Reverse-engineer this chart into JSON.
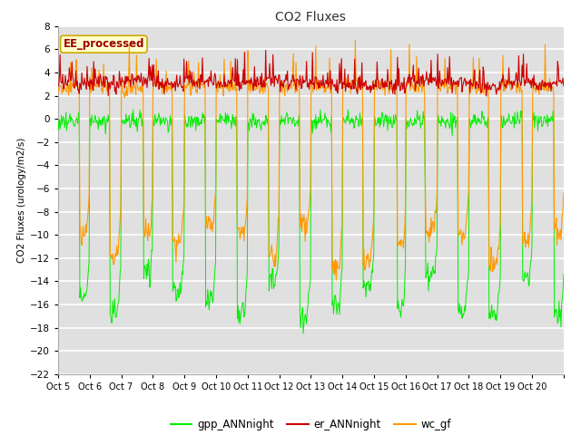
{
  "title": "CO2 Fluxes",
  "ylabel": "CO2 Fluxes (urology/m2/s)",
  "ylim": [
    -22,
    8
  ],
  "yticks": [
    -22,
    -20,
    -18,
    -16,
    -14,
    -12,
    -10,
    -8,
    -6,
    -4,
    -2,
    0,
    2,
    4,
    6,
    8
  ],
  "xlabels": [
    "Oct 5",
    "Oct 6",
    "Oct 7",
    "Oct 8",
    "Oct 9",
    "Oct 10",
    "Oct 11",
    "Oct 12",
    "Oct 13",
    "Oct 14",
    "Oct 15",
    "Oct 16",
    "Oct 17",
    "Oct 18",
    "Oct 19",
    "Oct 20"
  ],
  "n_days": 16,
  "points_per_day": 48,
  "color_gpp": "#00ee00",
  "color_er": "#cc0000",
  "color_wc": "#ff9900",
  "fig_bg": "#ffffff",
  "plot_bg": "#e0e0e0",
  "grid_color": "#f0f0f0",
  "legend_items": [
    "gpp_ANNnight",
    "er_ANNnight",
    "wc_gf"
  ],
  "label_text": "EE_processed",
  "label_bg": "#ffffcc",
  "label_border": "#ccaa00",
  "label_fg": "#990000"
}
